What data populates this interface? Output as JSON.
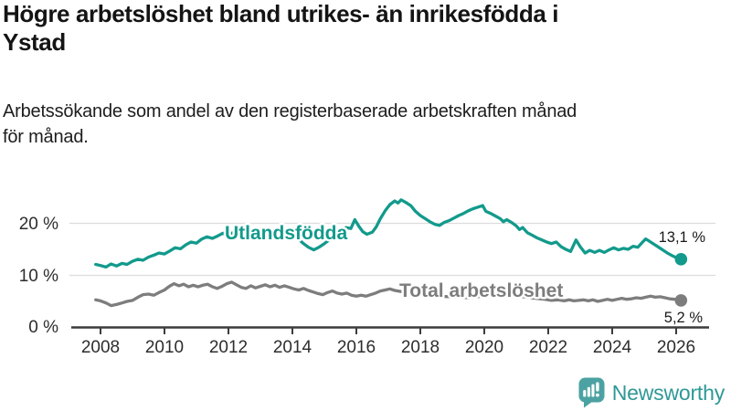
{
  "header": {
    "title_lines": [
      "Högre arbetslöshet bland utrikes- än inrikesfödda i",
      "Ystad"
    ],
    "subtitle_lines": [
      "Arbetssökande som andel av den registerbaserade arbetskraften månad",
      "för månad."
    ]
  },
  "chart_data": {
    "type": "line",
    "title": "Högre arbetslöshet bland utrikes- än inrikesfödda i Ystad",
    "subtitle": "Arbetssökande som andel av den registerbaserade arbetskraften månad för månad.",
    "xlabel": "",
    "ylabel": "",
    "grid": true,
    "legend_position": "inline-labels-on-lines",
    "xlim": [
      2007.8,
      2027
    ],
    "ylim": [
      0,
      26
    ],
    "x_ticks": [
      2008,
      2010,
      2012,
      2014,
      2016,
      2018,
      2020,
      2022,
      2024,
      2026
    ],
    "x_tick_labels": [
      "2008",
      "2010",
      "2012",
      "2014",
      "2016",
      "2018",
      "2020",
      "2022",
      "2024",
      "2026"
    ],
    "y_tick_labels": [
      "20 %",
      "10 %",
      "0 %"
    ],
    "y_tick_values": [
      20,
      10,
      0
    ],
    "series": [
      {
        "name": "Utlandsfödda",
        "color": "#129a8c",
        "end_label": "13,1 %",
        "end_value": 13.1,
        "points": [
          [
            2007.85,
            12.1
          ],
          [
            2008.0,
            11.9
          ],
          [
            2008.17,
            11.6
          ],
          [
            2008.33,
            12.2
          ],
          [
            2008.5,
            11.8
          ],
          [
            2008.67,
            12.3
          ],
          [
            2008.83,
            12.1
          ],
          [
            2009.0,
            12.7
          ],
          [
            2009.17,
            13.1
          ],
          [
            2009.33,
            12.9
          ],
          [
            2009.5,
            13.5
          ],
          [
            2009.67,
            13.9
          ],
          [
            2009.83,
            14.3
          ],
          [
            2010.0,
            14.1
          ],
          [
            2010.17,
            14.7
          ],
          [
            2010.33,
            15.3
          ],
          [
            2010.5,
            15.1
          ],
          [
            2010.67,
            15.9
          ],
          [
            2010.83,
            16.4
          ],
          [
            2011.0,
            16.2
          ],
          [
            2011.17,
            17.0
          ],
          [
            2011.33,
            17.4
          ],
          [
            2011.5,
            17.1
          ],
          [
            2011.67,
            17.6
          ],
          [
            2011.83,
            18.1
          ],
          [
            2012.0,
            17.8
          ],
          [
            2012.17,
            18.3
          ],
          [
            2012.33,
            18.7
          ],
          [
            2012.5,
            18.4
          ],
          [
            2012.67,
            18.8
          ],
          [
            2012.83,
            18.5
          ],
          [
            2013.0,
            18.2
          ],
          [
            2013.17,
            18.5
          ],
          [
            2013.33,
            18.3
          ],
          [
            2013.5,
            18.6
          ],
          [
            2013.67,
            18.2
          ],
          [
            2013.83,
            17.9
          ],
          [
            2014.0,
            17.6
          ],
          [
            2014.17,
            17.1
          ],
          [
            2014.33,
            16.2
          ],
          [
            2014.5,
            15.4
          ],
          [
            2014.67,
            14.9
          ],
          [
            2014.83,
            15.4
          ],
          [
            2015.0,
            16.1
          ],
          [
            2015.17,
            16.9
          ],
          [
            2015.33,
            17.7
          ],
          [
            2015.5,
            18.5
          ],
          [
            2015.67,
            19.2
          ],
          [
            2015.83,
            19.0
          ],
          [
            2015.95,
            20.7
          ],
          [
            2016.08,
            19.4
          ],
          [
            2016.2,
            18.4
          ],
          [
            2016.33,
            17.9
          ],
          [
            2016.5,
            18.3
          ],
          [
            2016.62,
            19.3
          ],
          [
            2016.75,
            20.9
          ],
          [
            2016.9,
            22.4
          ],
          [
            2017.05,
            23.6
          ],
          [
            2017.2,
            24.3
          ],
          [
            2017.3,
            23.9
          ],
          [
            2017.4,
            24.5
          ],
          [
            2017.55,
            24.0
          ],
          [
            2017.7,
            23.4
          ],
          [
            2017.85,
            22.3
          ],
          [
            2018.0,
            21.5
          ],
          [
            2018.15,
            20.9
          ],
          [
            2018.3,
            20.3
          ],
          [
            2018.45,
            19.8
          ],
          [
            2018.6,
            19.6
          ],
          [
            2018.75,
            20.2
          ],
          [
            2018.9,
            20.5
          ],
          [
            2019.05,
            21.0
          ],
          [
            2019.2,
            21.5
          ],
          [
            2019.35,
            21.9
          ],
          [
            2019.5,
            22.4
          ],
          [
            2019.65,
            22.8
          ],
          [
            2019.8,
            23.1
          ],
          [
            2019.95,
            23.4
          ],
          [
            2020.05,
            22.3
          ],
          [
            2020.2,
            21.9
          ],
          [
            2020.35,
            21.4
          ],
          [
            2020.5,
            20.9
          ],
          [
            2020.6,
            20.3
          ],
          [
            2020.7,
            20.7
          ],
          [
            2020.85,
            20.2
          ],
          [
            2021.0,
            19.5
          ],
          [
            2021.1,
            18.8
          ],
          [
            2021.2,
            19.2
          ],
          [
            2021.35,
            18.2
          ],
          [
            2021.5,
            17.7
          ],
          [
            2021.65,
            17.2
          ],
          [
            2021.8,
            16.8
          ],
          [
            2021.95,
            16.4
          ],
          [
            2022.1,
            16.1
          ],
          [
            2022.25,
            16.4
          ],
          [
            2022.4,
            15.5
          ],
          [
            2022.55,
            15.0
          ],
          [
            2022.7,
            14.6
          ],
          [
            2022.87,
            16.8
          ],
          [
            2023.0,
            15.5
          ],
          [
            2023.15,
            14.3
          ],
          [
            2023.3,
            14.8
          ],
          [
            2023.45,
            14.4
          ],
          [
            2023.6,
            14.8
          ],
          [
            2023.75,
            14.4
          ],
          [
            2023.9,
            14.9
          ],
          [
            2024.05,
            15.3
          ],
          [
            2024.2,
            14.9
          ],
          [
            2024.35,
            15.2
          ],
          [
            2024.5,
            15.0
          ],
          [
            2024.65,
            15.6
          ],
          [
            2024.8,
            15.4
          ],
          [
            2024.95,
            16.4
          ],
          [
            2025.05,
            17.0
          ],
          [
            2025.15,
            16.6
          ],
          [
            2025.3,
            16.0
          ],
          [
            2025.45,
            15.4
          ],
          [
            2025.6,
            14.8
          ],
          [
            2025.75,
            14.2
          ],
          [
            2025.9,
            13.7
          ],
          [
            2026.05,
            13.3
          ],
          [
            2026.15,
            13.1
          ]
        ]
      },
      {
        "name": "Total arbetslöshet",
        "color": "#7d7d7d",
        "end_label": "5,2 %",
        "end_value": 5.2,
        "points": [
          [
            2007.85,
            5.3
          ],
          [
            2008.0,
            5.1
          ],
          [
            2008.17,
            4.7
          ],
          [
            2008.33,
            4.2
          ],
          [
            2008.5,
            4.4
          ],
          [
            2008.67,
            4.7
          ],
          [
            2008.83,
            5.0
          ],
          [
            2009.0,
            5.2
          ],
          [
            2009.17,
            5.8
          ],
          [
            2009.33,
            6.3
          ],
          [
            2009.5,
            6.4
          ],
          [
            2009.67,
            6.2
          ],
          [
            2009.83,
            6.7
          ],
          [
            2010.0,
            7.2
          ],
          [
            2010.15,
            7.9
          ],
          [
            2010.3,
            8.4
          ],
          [
            2010.45,
            8.0
          ],
          [
            2010.6,
            8.3
          ],
          [
            2010.75,
            7.8
          ],
          [
            2010.9,
            8.1
          ],
          [
            2011.05,
            7.8
          ],
          [
            2011.2,
            8.1
          ],
          [
            2011.35,
            8.3
          ],
          [
            2011.5,
            7.8
          ],
          [
            2011.65,
            7.5
          ],
          [
            2011.8,
            7.9
          ],
          [
            2011.95,
            8.4
          ],
          [
            2012.1,
            8.7
          ],
          [
            2012.25,
            8.2
          ],
          [
            2012.4,
            7.7
          ],
          [
            2012.55,
            7.5
          ],
          [
            2012.7,
            8.0
          ],
          [
            2012.85,
            7.6
          ],
          [
            2013.0,
            7.9
          ],
          [
            2013.15,
            8.2
          ],
          [
            2013.3,
            7.8
          ],
          [
            2013.45,
            8.1
          ],
          [
            2013.6,
            7.7
          ],
          [
            2013.75,
            8.0
          ],
          [
            2013.9,
            7.7
          ],
          [
            2014.05,
            7.4
          ],
          [
            2014.2,
            7.2
          ],
          [
            2014.35,
            7.5
          ],
          [
            2014.5,
            7.1
          ],
          [
            2014.65,
            6.8
          ],
          [
            2014.8,
            6.5
          ],
          [
            2014.95,
            6.3
          ],
          [
            2015.1,
            6.7
          ],
          [
            2015.25,
            7.0
          ],
          [
            2015.4,
            6.6
          ],
          [
            2015.55,
            6.4
          ],
          [
            2015.7,
            6.6
          ],
          [
            2015.85,
            6.2
          ],
          [
            2016.0,
            6.0
          ],
          [
            2016.15,
            6.2
          ],
          [
            2016.3,
            6.0
          ],
          [
            2016.45,
            6.3
          ],
          [
            2016.6,
            6.6
          ],
          [
            2016.75,
            7.0
          ],
          [
            2016.9,
            7.2
          ],
          [
            2017.05,
            7.4
          ],
          [
            2017.2,
            7.1
          ],
          [
            2017.4,
            6.9
          ],
          [
            2017.6,
            6.7
          ],
          [
            2017.8,
            6.5
          ],
          [
            2018.0,
            6.3
          ],
          [
            2018.3,
            6.2
          ],
          [
            2018.6,
            6.0
          ],
          [
            2018.9,
            5.9
          ],
          [
            2019.2,
            5.8
          ],
          [
            2019.5,
            5.7
          ],
          [
            2019.8,
            5.9
          ],
          [
            2020.1,
            6.2
          ],
          [
            2020.4,
            6.5
          ],
          [
            2020.7,
            6.4
          ],
          [
            2021.0,
            6.1
          ],
          [
            2021.3,
            5.8
          ],
          [
            2021.6,
            5.6
          ],
          [
            2021.9,
            5.4
          ],
          [
            2022.1,
            5.2
          ],
          [
            2022.3,
            5.3
          ],
          [
            2022.5,
            5.1
          ],
          [
            2022.65,
            5.3
          ],
          [
            2022.8,
            5.1
          ],
          [
            2022.95,
            5.2
          ],
          [
            2023.1,
            5.3
          ],
          [
            2023.25,
            5.1
          ],
          [
            2023.4,
            5.3
          ],
          [
            2023.55,
            5.0
          ],
          [
            2023.7,
            5.2
          ],
          [
            2023.85,
            5.4
          ],
          [
            2024.0,
            5.2
          ],
          [
            2024.15,
            5.4
          ],
          [
            2024.3,
            5.6
          ],
          [
            2024.45,
            5.4
          ],
          [
            2024.6,
            5.5
          ],
          [
            2024.75,
            5.7
          ],
          [
            2024.9,
            5.6
          ],
          [
            2025.05,
            5.8
          ],
          [
            2025.2,
            6.0
          ],
          [
            2025.35,
            5.8
          ],
          [
            2025.5,
            5.9
          ],
          [
            2025.65,
            5.7
          ],
          [
            2025.8,
            5.5
          ],
          [
            2025.95,
            5.4
          ],
          [
            2026.1,
            5.3
          ],
          [
            2026.15,
            5.2
          ]
        ]
      }
    ]
  },
  "footer": {
    "brand": "Newsworthy",
    "brand_text_color": "#2e9897",
    "brand_icon_color": "#4ca2a2"
  }
}
